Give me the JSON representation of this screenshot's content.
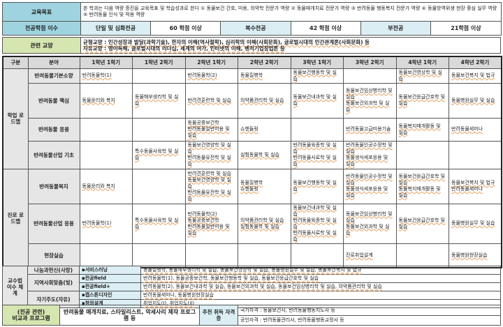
{
  "goal": {
    "label": "교육목표",
    "text": "본 학과는 다음 역량 증진을 교육목표 및 학습성과로 한다 ① 동물보건 간호, 미용, 의약학 전문가 역량 ② 동물매개치료 전문가 역량 ③ 반려동물 행동복지 전문가 역량 ④ 동물방역위생 현장 중심 실무 역량 ⑤ 반려동물 인식 및 적용 역량"
  },
  "credits": {
    "label": "전공학점 이수",
    "items": [
      {
        "name": "단일 및 심화전공",
        "value": "60 학점 이상"
      },
      {
        "name": "복수전공",
        "value": "42 학점 이상"
      },
      {
        "name": "부전공",
        "value": "21학점 이상"
      }
    ]
  },
  "liberal": {
    "label": "관련 교양",
    "lines": [
      "균형교양 : 인간성장과 발달(과학기술), 한자의 이해(역사철학), 심리학의 이해(사회문화), 글로벌시대의 인간관계론(사회문화) 등",
      "자유교양 : 영어독해, 글로벌시대의 리더십, 세계의 여가, 인터넷의 이해, 벤처기업창업론 등"
    ]
  },
  "roadmap": {
    "headers": [
      "구분",
      "분야",
      "1학년 1학기",
      "1학년 2학기",
      "2학년 1학기",
      "2학년 2학기",
      "3학년 1학기",
      "3학년 2학기",
      "4학년 1학기",
      "4학년 2학기"
    ],
    "groups": [
      {
        "name": "학업 로드맵",
        "rows": [
          {
            "field": "반려동물기본소양",
            "cells": [
              [
                "반려동물학(1)"
              ],
              [],
              [
                "반려동물학(2)"
              ],
              [
                "동물질병학"
              ],
              [
                "동물보건행동학 및 실습"
              ],
              [],
              [
                "동물보건영상학 및 실습"
              ],
              [
                "동물보건복지 및 법규"
              ]
            ]
          },
          {
            "field": "반려동물 핵심",
            "cells": [
              [
                "동물윤리와 복지"
              ],
              [
                "동물해부생리학 및 실습"
              ],
              [
                "반려견훈련학 및 실습"
              ],
              [
                "의약품관리학 및 실습"
              ],
              [
                "동물보건내과학 및 실습"
              ],
              [
                "동물보건임상병리학 및 실습",
                "동물보건외과학 및 실습"
              ],
              [
                "동물보건응급간호학 및 실습"
              ],
              [
                "동물병원실무 및 실습"
              ]
            ]
          },
          {
            "field": "반려동물 응용",
            "cells": [
              [],
              [],
              [
                "동물공중보건학",
                "반려동물일반미용 및 실습"
              ],
              [
                "쇼핸들링"
              ],
              [],
              [
                "반려동물고급미용기술"
              ],
              [
                "동물복지매개활동 및 실습"
              ],
              [
                "반려동물세미나"
              ]
            ]
          },
          {
            "field": "반려동물산업 기초",
            "cells": [
              [],
              [
                "특수동물사육학 및 실습"
              ],
              [
                "동물보건영양학 및 실습",
                "반려동물유전학 및 실습"
              ],
              [
                "실험동물학 및 실습"
              ],
              [
                "반려동물육종학 및 실습",
                "반려동물사료학 및 실습"
              ],
              [
                "반려동물인공수정학 및 실습",
                "동물생식세포응용 및 실습"
              ],
              [],
              []
            ]
          }
        ]
      },
      {
        "name": "진로 로드맵",
        "rows": [
          {
            "field": "반려동물복지",
            "cells": [
              [
                "동물윤리와 복지"
              ],
              [],
              [
                "반려견훈련학 및 실습",
                "동물보건영양학 및 실습",
                "반려동물유전학 및 실습"
              ],
              [
                "동물질병학",
                "쇼핸들링"
              ],
              [
                "동물보건행동학 및 실습"
              ],
              [
                "반려동물인공수정학 및 실습",
                "동물생식세포응용 및 실습"
              ],
              [
                "동물보건응급간호학 및 실습",
                "동물복지매개활동 및 실습"
              ],
              [
                "동물보건복지 및 법규",
                "반려동물세미나"
              ]
            ]
          },
          {
            "field": "반려동물산업 응용",
            "cells": [
              [
                "반려동물학(1)"
              ],
              [
                "특수동물사육학 및 실습"
              ],
              [
                "반려동물학(2)",
                "동물공중보건학",
                "반려동물일반미용 및 실습"
              ],
              [
                "의약품관리학 및 실습",
                "실험동물학 및 실습"
              ],
              [
                "동물보건내과학 및 실습",
                "반려동물육종학 및 실습",
                "반려동물사료학 및 실습"
              ],
              [
                "동물보건임상병리학 및 실습",
                "동물보건외과학 및 실습"
              ],
              [
                "동물보건응급간호학 및 실습"
              ],
              [
                "동물병원실무 및 실습"
              ]
            ]
          },
          {
            "field": "현장실습",
            "cells": [
              [],
              [],
              [],
              [],
              [],
              [
                "진로취업설계"
              ],
              [],
              [
                "동물병원현장실습"
              ]
            ]
          }
        ]
      }
    ]
  },
  "teaching": {
    "label": "교수법 이수 체계",
    "groups": [
      {
        "name": "나눔과헌신(사랑)",
        "items": [
          {
            "method": "▪서비스러닝",
            "courses": "동물질병학, 동물해부생리학 및 실습, 동물보건영상학 및 실습, 동물병원실무 및 실습, 동물보건복지 및 법규"
          }
        ]
      },
      {
        "name": "지역사회맞춤(빛)",
        "items": [
          {
            "method": "▪전공field",
            "courses": "반려동물학(1), 동물공중보건학, 동물보건행동학 및 실습, 동물보건응급간호학 및 실습"
          },
          {
            "method": "▪전공field+",
            "courses": "반려동물학(2), 동물보건내과학 및 실습, 동물보건외과학 및 실습, 동물보건임상병리학 및 실습, 의약품관리학 및 실습"
          }
        ]
      },
      {
        "name": "자기주도(자유)",
        "items": [
          {
            "method": "▪캡스톤디자인",
            "courses": "반려동물세미나, 동물병원현장실습"
          },
          {
            "method": "▪창의설계",
            "courses": "취업지도(I), 취업지도(II)"
          }
        ]
      }
    ]
  },
  "extra": {
    "label1": "(전공 관련)",
    "label2": "비교과 프로그램",
    "text": "반려동물 매개치료, 스타일리스트, 악세사리 제작 프로그램 등",
    "cert_label": "추천 취득 자격증",
    "certs": [
      "국가자격 : 동물보건사, 반려동물행동지도사 등",
      "공인자격 : 반려동물관리사, 반려동물행동교정사 등"
    ]
  }
}
